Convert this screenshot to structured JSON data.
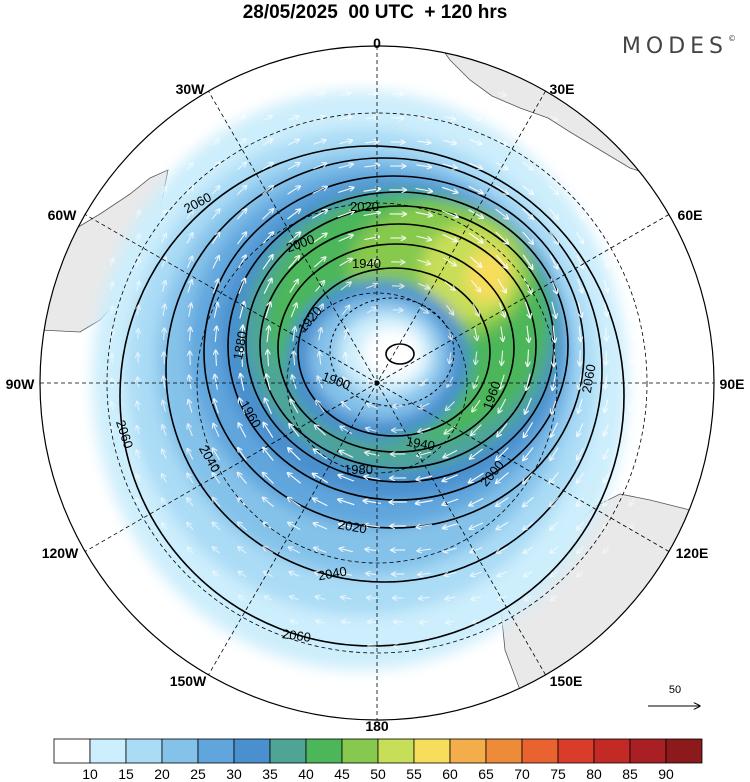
{
  "header": {
    "title": "28/05/2025  00 UTC  + 120 hrs",
    "brand": "MODES",
    "brand_mark": "©"
  },
  "map": {
    "projection": "south-polar-stereographic",
    "longitude_labels": [
      {
        "text": "0",
        "lon": 0
      },
      {
        "text": "30E",
        "lon": 30
      },
      {
        "text": "60E",
        "lon": 60
      },
      {
        "text": "90E",
        "lon": 90
      },
      {
        "text": "120E",
        "lon": 120
      },
      {
        "text": "150E",
        "lon": 150
      },
      {
        "text": "180",
        "lon": 180
      },
      {
        "text": "150W",
        "lon": -150
      },
      {
        "text": "120W",
        "lon": -120
      },
      {
        "text": "90W",
        "lon": -90
      },
      {
        "text": "60W",
        "lon": -60
      },
      {
        "text": "30W",
        "lon": -30
      }
    ],
    "contour_labels": [
      "2060",
      "2020",
      "2000",
      "1940",
      "1920",
      "1880",
      "1900",
      "1960",
      "1980",
      "2040",
      "2020",
      "2000",
      "2040",
      "2060",
      "2060",
      "2060",
      "1960",
      "1940"
    ],
    "colors": {
      "land": "#e9e9e9",
      "contour": "#000000",
      "vector": "#ffffff"
    }
  },
  "colorbar": {
    "ticks": [
      "10",
      "15",
      "20",
      "25",
      "30",
      "35",
      "40",
      "45",
      "50",
      "55",
      "60",
      "65",
      "70",
      "75",
      "80",
      "85",
      "90"
    ],
    "colors": [
      "#ffffff",
      "#cdeefc",
      "#abdcf6",
      "#85c2ea",
      "#60a6dd",
      "#4a8fce",
      "#4ea596",
      "#4cb65a",
      "#86c94e",
      "#c7de58",
      "#f6dd5c",
      "#f3ad4a",
      "#ee8b38",
      "#e86330",
      "#da3c2a",
      "#c32a26",
      "#a82024",
      "#8c1a1c"
    ]
  },
  "reference_vector": {
    "label": "50"
  }
}
